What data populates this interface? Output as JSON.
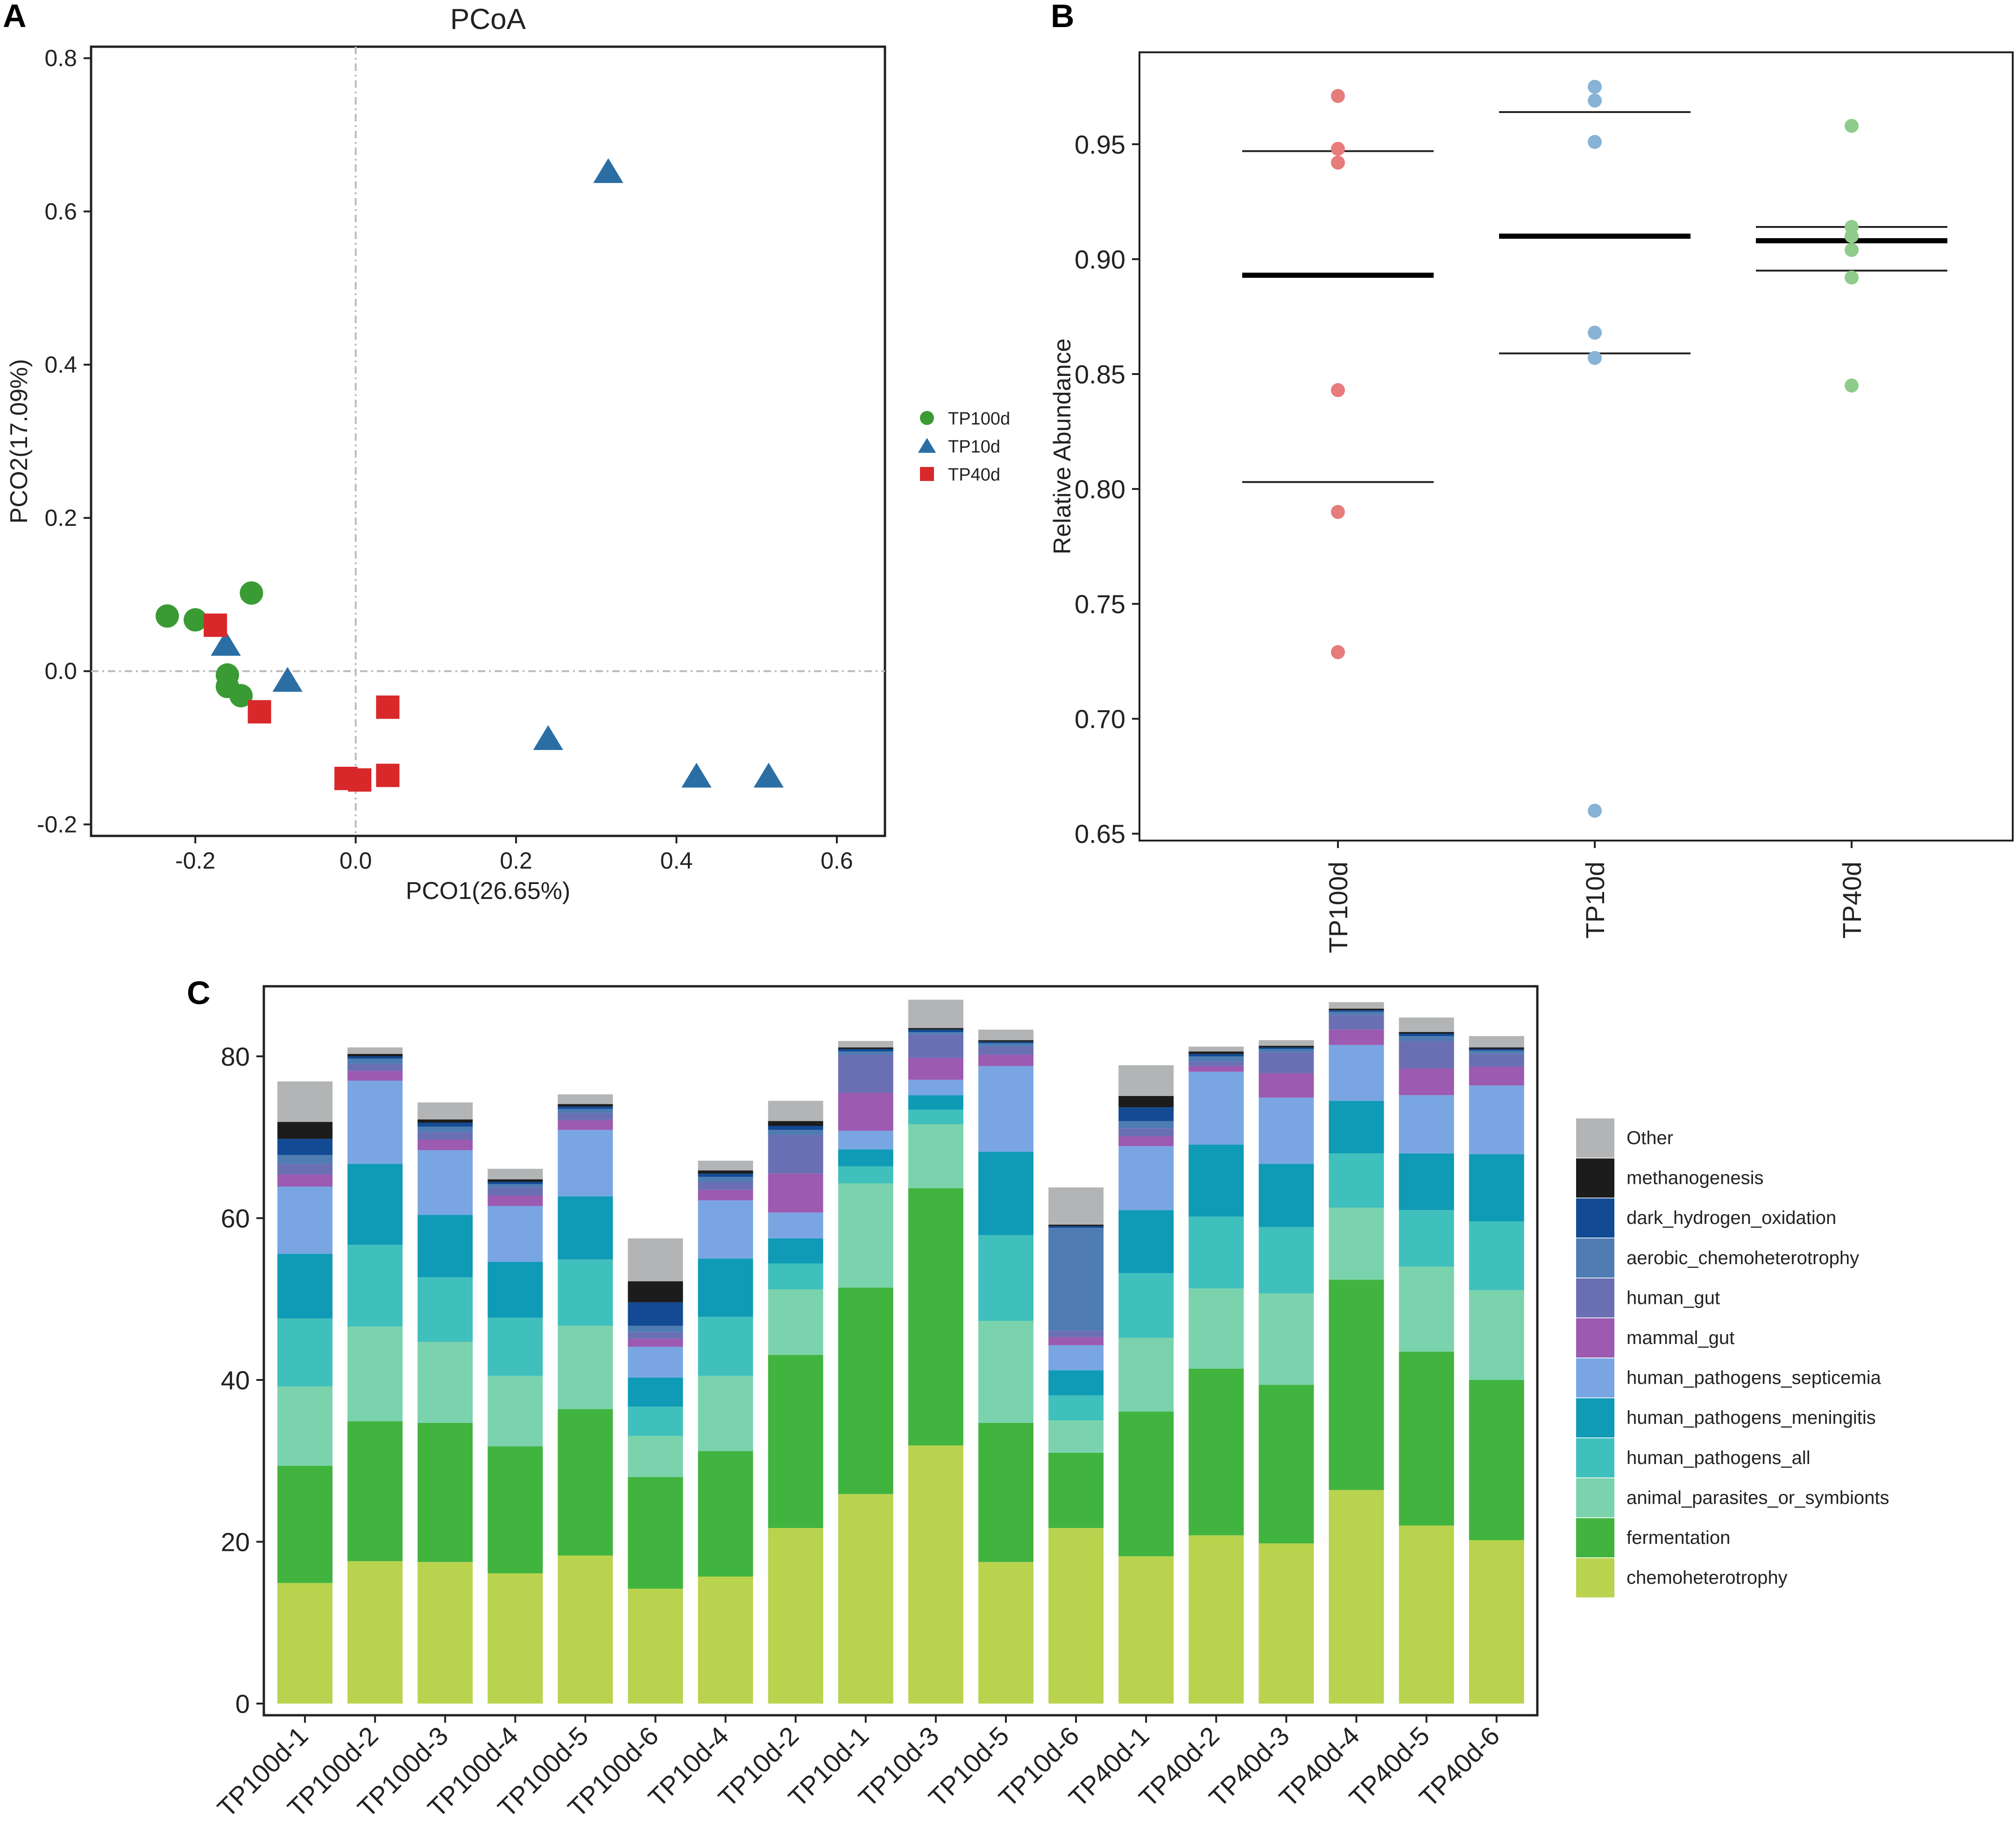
{
  "panels": {
    "a": "A",
    "b": "B",
    "c": "C"
  },
  "chart_data": [
    {
      "type": "scatter",
      "title": "PCoA",
      "xlabel": "PCO1(26.65%)",
      "ylabel": "PCO2(17.09%)",
      "xlim": [
        -0.33,
        0.66
      ],
      "ylim": [
        -0.215,
        0.815
      ],
      "xticks": [
        -0.2,
        0.0,
        0.2,
        0.4,
        0.6
      ],
      "xtick_labels": [
        "-0.2",
        "0.0",
        "0.2",
        "0.4",
        "0.6"
      ],
      "yticks": [
        -0.2,
        0.0,
        0.2,
        0.4,
        0.6,
        0.8
      ],
      "ytick_labels": [
        "-0.2",
        "0.0",
        "0.2",
        "0.4",
        "0.6",
        "0.8"
      ],
      "reference_lines": {
        "x": 0,
        "y": 0
      },
      "legend_position": "right",
      "series": [
        {
          "name": "TP100d",
          "marker": "circle",
          "color": "#3a9a34",
          "points": [
            [
              -0.235,
              0.072
            ],
            [
              -0.2,
              0.067
            ],
            [
              -0.13,
              0.102
            ],
            [
              -0.16,
              -0.005
            ],
            [
              -0.16,
              -0.02
            ],
            [
              -0.143,
              -0.032
            ]
          ]
        },
        {
          "name": "TP10d",
          "marker": "triangle",
          "color": "#2b6ea4",
          "points": [
            [
              0.315,
              0.652
            ],
            [
              -0.162,
              0.035
            ],
            [
              -0.085,
              -0.012
            ],
            [
              0.24,
              -0.088
            ],
            [
              0.425,
              -0.137
            ],
            [
              0.515,
              -0.137
            ]
          ]
        },
        {
          "name": "TP40d",
          "marker": "square",
          "color": "#d8282a",
          "points": [
            [
              -0.175,
              0.06
            ],
            [
              -0.12,
              -0.053
            ],
            [
              0.04,
              -0.047
            ],
            [
              -0.012,
              -0.14
            ],
            [
              0.005,
              -0.142
            ],
            [
              0.04,
              -0.136
            ]
          ]
        }
      ]
    },
    {
      "type": "scatter",
      "title": "",
      "xlabel": "",
      "ylabel": "Relative Abundance",
      "ylim": [
        0.647,
        0.99
      ],
      "yticks": [
        0.65,
        0.7,
        0.75,
        0.8,
        0.85,
        0.9,
        0.95
      ],
      "ytick_labels": [
        "0.65",
        "0.70",
        "0.75",
        "0.80",
        "0.85",
        "0.90",
        "0.95"
      ],
      "categories": [
        "TP100d",
        "TP10d",
        "TP40d"
      ],
      "series": [
        {
          "name": "TP100d",
          "color": "#e67c7b",
          "values": [
            0.971,
            0.948,
            0.942,
            0.843,
            0.79,
            0.729
          ],
          "mean": 0.893,
          "upper": 0.947,
          "lower": 0.803
        },
        {
          "name": "TP10d",
          "color": "#86b3d6",
          "values": [
            0.975,
            0.969,
            0.951,
            0.868,
            0.857,
            0.66
          ],
          "mean": 0.91,
          "upper": 0.964,
          "lower": 0.859
        },
        {
          "name": "TP40d",
          "color": "#8fcb8b",
          "values": [
            0.958,
            0.914,
            0.91,
            0.904,
            0.892,
            0.845
          ],
          "mean": 0.908,
          "upper": 0.914,
          "lower": 0.895
        }
      ]
    },
    {
      "type": "bar",
      "stacked": true,
      "title": "",
      "xlabel": "",
      "ylabel": "",
      "ylim": [
        0,
        88.5
      ],
      "yticks": [
        0,
        20,
        40,
        60,
        80
      ],
      "ytick_labels": [
        "0",
        "20",
        "40",
        "60",
        "80"
      ],
      "legend_position": "right",
      "categories": [
        "TP100d-1",
        "TP100d-2",
        "TP100d-3",
        "TP100d-4",
        "TP100d-5",
        "TP100d-6",
        "TP10d-4",
        "TP10d-2",
        "TP10d-1",
        "TP10d-3",
        "TP10d-5",
        "TP10d-6",
        "TP40d-1",
        "TP40d-2",
        "TP40d-3",
        "TP40d-4",
        "TP40d-5",
        "TP40d-6"
      ],
      "series": [
        {
          "name": "chemoheterotrophy",
          "color": "#bad34e",
          "values": [
            14.9,
            17.6,
            17.5,
            16.1,
            18.3,
            14.2,
            15.7,
            21.7,
            25.9,
            31.9,
            17.5,
            21.7,
            18.2,
            20.8,
            19.8,
            26.4,
            22.0,
            20.2
          ]
        },
        {
          "name": "fermentation",
          "color": "#41b440",
          "values": [
            14.5,
            17.3,
            17.2,
            15.7,
            18.1,
            13.8,
            15.5,
            21.4,
            25.5,
            31.8,
            17.2,
            9.3,
            17.9,
            20.6,
            19.6,
            26.0,
            21.5,
            19.8
          ]
        },
        {
          "name": "animal_parasites_or_symbionts",
          "color": "#7bd3ad",
          "values": [
            9.8,
            11.7,
            10.0,
            8.7,
            10.3,
            5.1,
            9.3,
            8.1,
            12.9,
            7.9,
            12.6,
            4.0,
            9.1,
            9.9,
            11.3,
            8.9,
            10.5,
            11.1
          ]
        },
        {
          "name": "human_pathogens_all",
          "color": "#40c0bc",
          "values": [
            8.4,
            10.1,
            8.0,
            7.2,
            8.2,
            3.6,
            7.3,
            3.2,
            2.1,
            1.8,
            10.6,
            3.1,
            8.0,
            8.9,
            8.2,
            6.7,
            7.0,
            8.5
          ]
        },
        {
          "name": "human_pathogens_meningitis",
          "color": "#0f9ab6",
          "values": [
            8.0,
            10.0,
            7.7,
            6.9,
            7.8,
            3.6,
            7.2,
            3.1,
            2.1,
            1.8,
            10.3,
            3.1,
            7.8,
            8.9,
            7.8,
            6.5,
            7.0,
            8.3
          ]
        },
        {
          "name": "human_pathogens_septicemia",
          "color": "#79a6e3",
          "values": [
            8.3,
            10.3,
            8.0,
            6.9,
            8.2,
            3.8,
            7.2,
            3.2,
            2.3,
            1.9,
            10.6,
            3.1,
            7.9,
            9.0,
            8.2,
            6.9,
            7.2,
            8.5
          ]
        },
        {
          "name": "mammal_gut",
          "color": "#9c5ab0",
          "values": [
            1.5,
            1.2,
            1.3,
            1.3,
            1.2,
            1.0,
            1.3,
            4.8,
            4.7,
            2.7,
            1.4,
            1.0,
            1.2,
            0.7,
            3.0,
            1.9,
            3.3,
            2.3
          ]
        },
        {
          "name": "human_gut",
          "color": "#6a6fb4",
          "values": [
            1.3,
            0.9,
            0.9,
            1.0,
            0.9,
            0.8,
            1.0,
            4.8,
            4.7,
            2.9,
            1.0,
            0.8,
            1.0,
            0.6,
            2.6,
            1.8,
            3.4,
            1.6
          ]
        },
        {
          "name": "aerobic_chemoheterotrophy",
          "color": "#4f7cb2",
          "values": [
            1.1,
            0.6,
            0.7,
            0.4,
            0.5,
            0.8,
            0.6,
            0.6,
            0.4,
            0.3,
            0.4,
            12.7,
            0.9,
            0.6,
            0.4,
            0.4,
            0.6,
            0.4
          ]
        },
        {
          "name": "dark_hydrogen_oxidation",
          "color": "#124a94",
          "values": [
            2.0,
            0.3,
            0.5,
            0.3,
            0.3,
            2.9,
            0.4,
            0.5,
            0.3,
            0.3,
            0.2,
            0.2,
            1.7,
            0.3,
            0.2,
            0.2,
            0.3,
            0.2
          ]
        },
        {
          "name": "methanogenesis",
          "color": "#1c1c1c",
          "values": [
            2.1,
            0.3,
            0.4,
            0.3,
            0.3,
            2.6,
            0.4,
            0.6,
            0.2,
            0.2,
            0.2,
            0.2,
            1.4,
            0.3,
            0.2,
            0.2,
            0.2,
            0.2
          ]
        },
        {
          "name": "Other",
          "color": "#b3b4b5",
          "values": [
            5.0,
            0.8,
            2.1,
            1.3,
            1.2,
            5.3,
            1.2,
            2.5,
            0.8,
            3.5,
            1.3,
            4.6,
            3.8,
            0.6,
            0.7,
            0.8,
            1.8,
            1.4
          ]
        }
      ]
    }
  ]
}
